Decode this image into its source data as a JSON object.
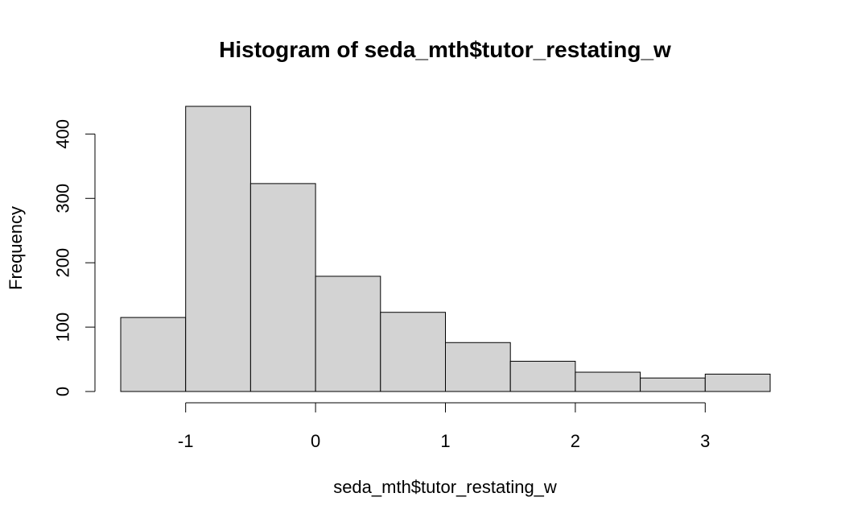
{
  "chart_data": {
    "type": "bar",
    "title": "Histogram of seda_mth$tutor_restating_w",
    "xlabel": "seda_mth$tutor_restating_w",
    "ylabel": "Frequency",
    "bins": [
      {
        "x0": -1.5,
        "x1": -1.0,
        "count": 115
      },
      {
        "x0": -1.0,
        "x1": -0.5,
        "count": 443
      },
      {
        "x0": -0.5,
        "x1": 0.0,
        "count": 323
      },
      {
        "x0": 0.0,
        "x1": 0.5,
        "count": 179
      },
      {
        "x0": 0.5,
        "x1": 1.0,
        "count": 123
      },
      {
        "x0": 1.0,
        "x1": 1.5,
        "count": 76
      },
      {
        "x0": 1.5,
        "x1": 2.0,
        "count": 47
      },
      {
        "x0": 2.0,
        "x1": 2.5,
        "count": 30
      },
      {
        "x0": 2.5,
        "x1": 3.0,
        "count": 21
      },
      {
        "x0": 3.0,
        "x1": 3.5,
        "count": 27
      }
    ],
    "xticks": [
      -1,
      0,
      1,
      2,
      3
    ],
    "xtick_labels": [
      "-1",
      "0",
      "1",
      "2",
      "3"
    ],
    "yticks": [
      0,
      100,
      200,
      300,
      400
    ],
    "ytick_labels": [
      "0",
      "100",
      "200",
      "300",
      "400"
    ],
    "xlim": [
      -1.5,
      3.5
    ],
    "ylim": [
      0,
      443
    ],
    "bar_color": "#d3d3d3",
    "grid": false,
    "legend": "none"
  }
}
